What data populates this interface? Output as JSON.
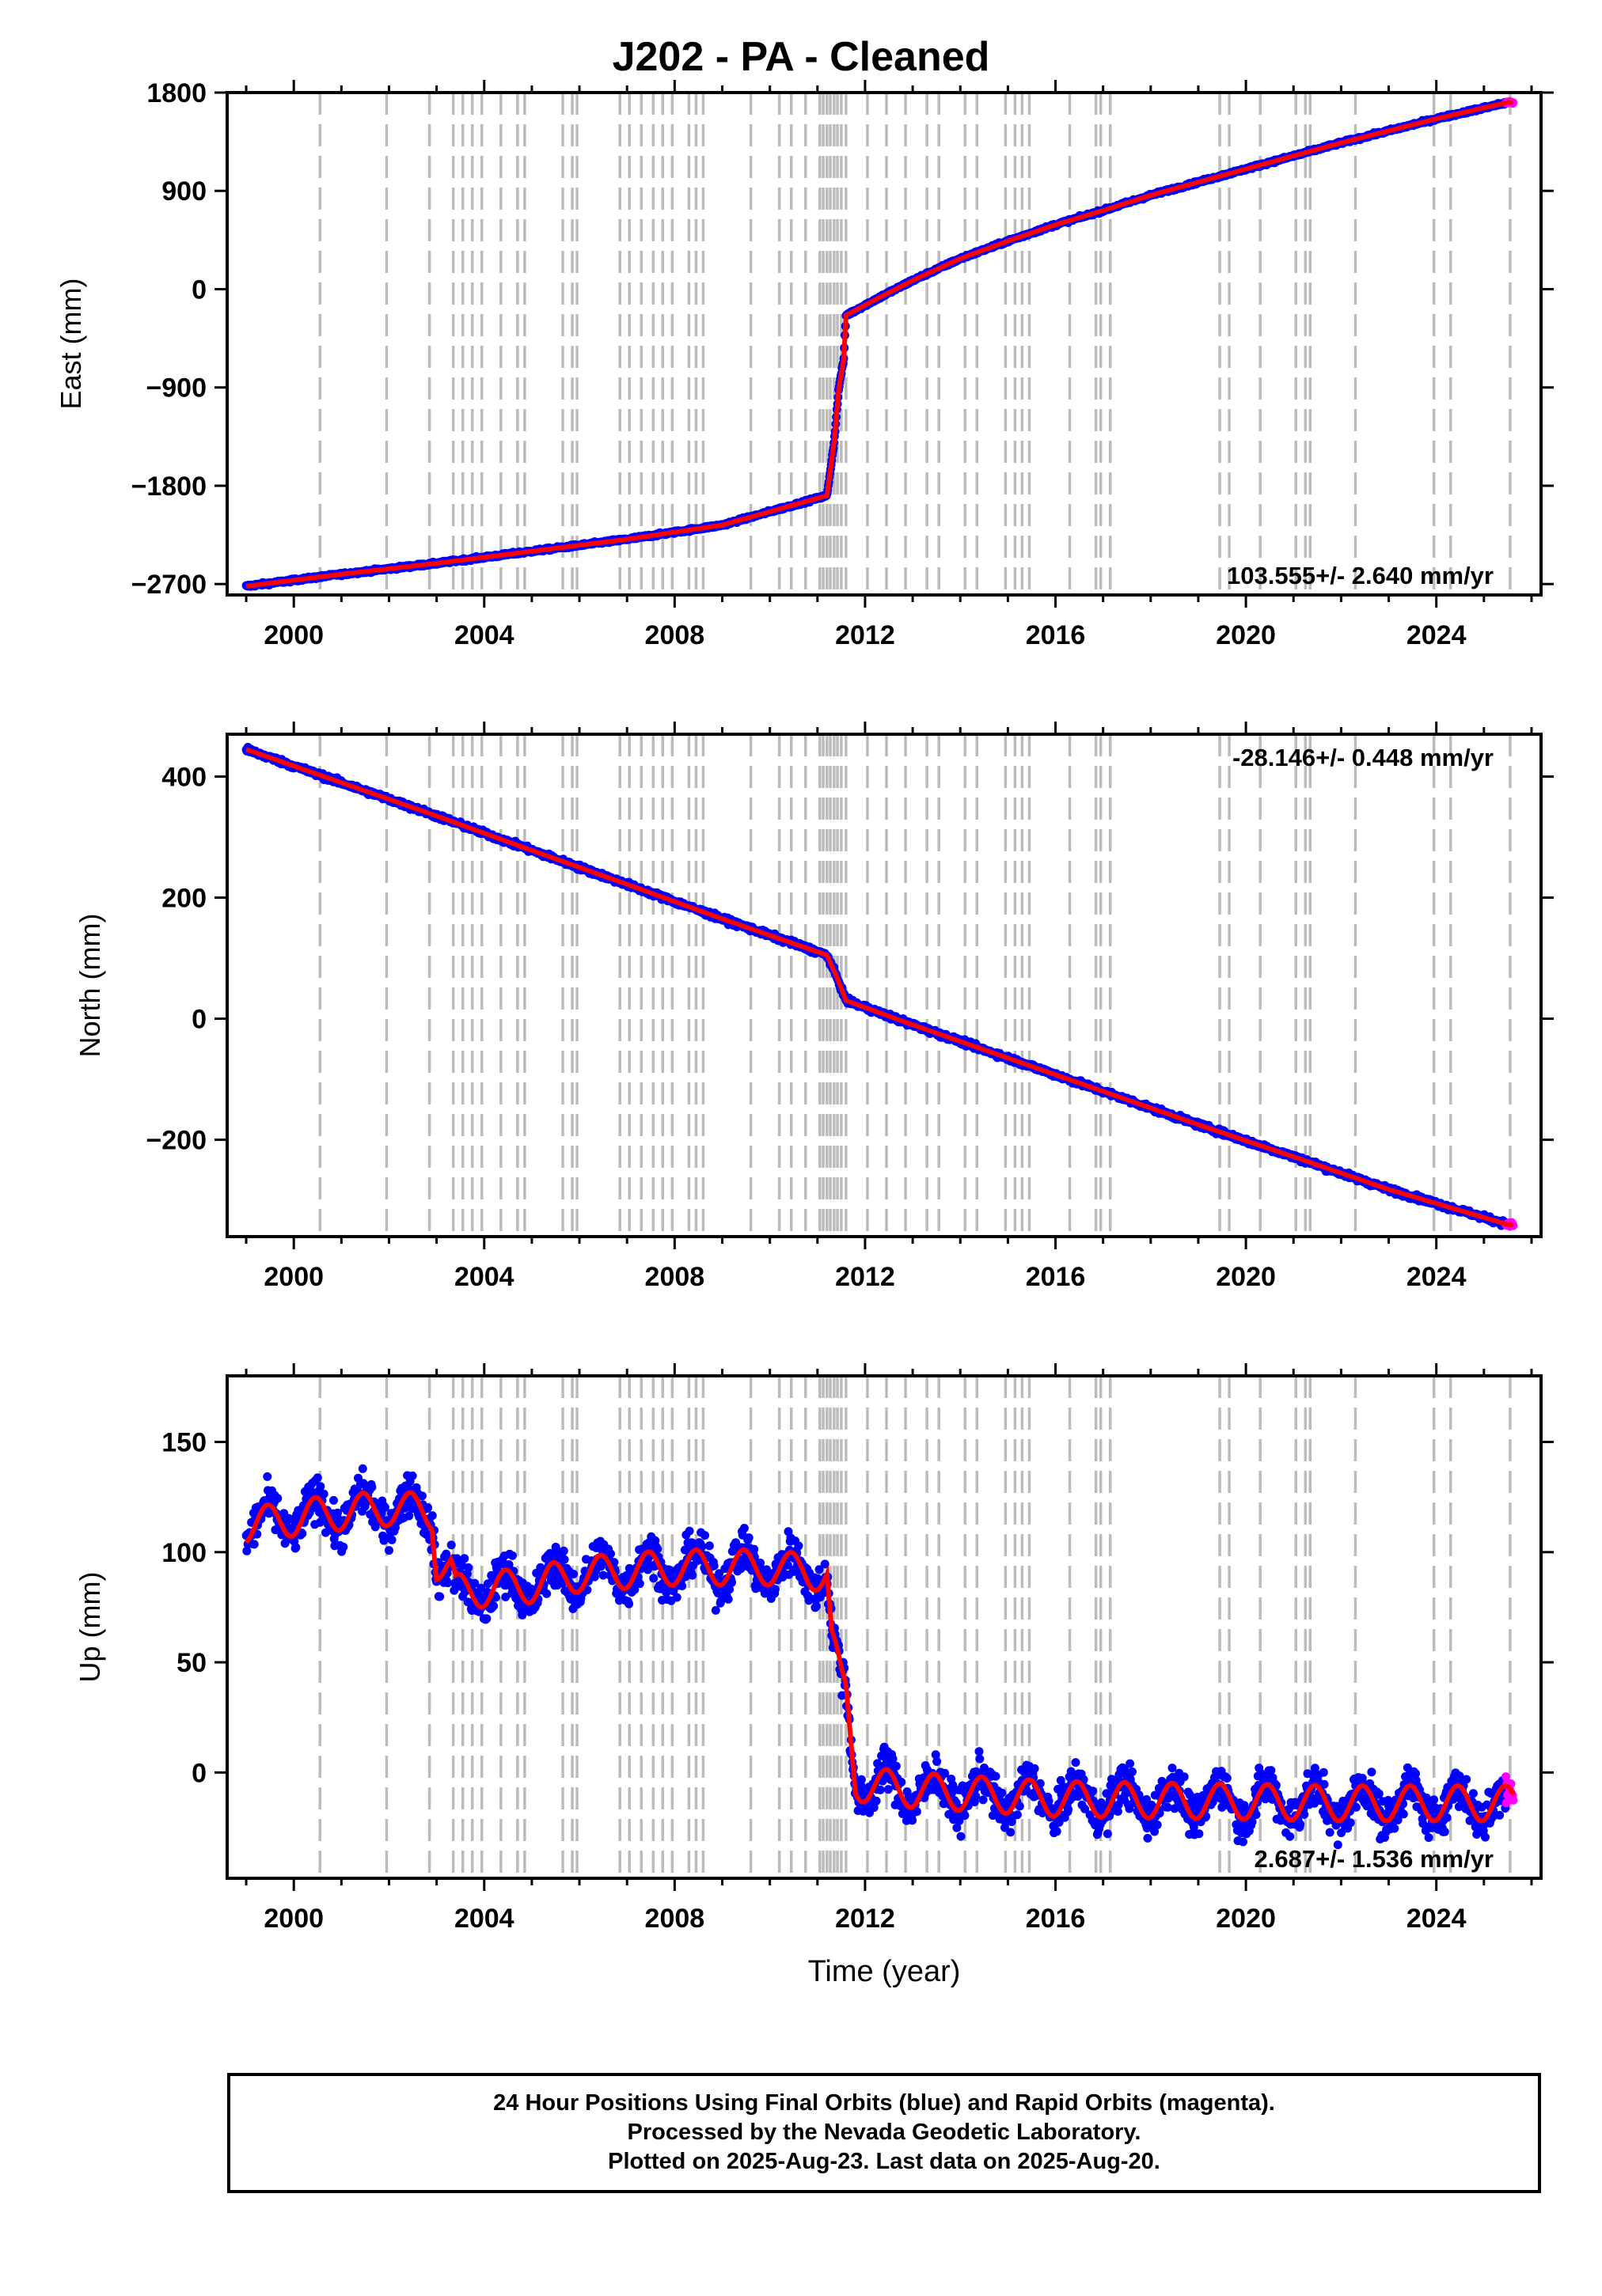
{
  "title": "J202  - PA - Cleaned",
  "footer": {
    "line1": "24 Hour Positions Using Final Orbits (blue) and Rapid Orbits (magenta).",
    "line2": "Processed by the Nevada Geodetic Laboratory.",
    "line3": "Plotted on 2025-Aug-23. Last data on 2025-Aug-20."
  },
  "colors": {
    "final_orbits": "#0000ff",
    "rapid_orbits": "#ff00ff",
    "model": "#ff0000",
    "event_lines": "#bbbbbb",
    "axis": "#000000"
  },
  "chart_data": [
    {
      "type": "scatter",
      "name": "east",
      "ylabel": "East (mm)",
      "xlabel": "",
      "xlim": [
        1998.6,
        2026.2
      ],
      "ylim": [
        -2800,
        1800
      ],
      "xticks": [
        2000,
        2004,
        2008,
        2012,
        2016,
        2020,
        2024
      ],
      "yticks": [
        1800,
        900,
        0,
        -900,
        -1800,
        -2700
      ],
      "ytick_labels": [
        "1800",
        "900",
        "0",
        "−900",
        "−1800",
        "−2700"
      ],
      "rate_label": "103.555+/- 2.640 mm/yr",
      "rate_position": "bottom-right",
      "grid": false,
      "trend_points": [
        [
          1999.0,
          -2720
        ],
        [
          2001.0,
          -2610
        ],
        [
          2003.0,
          -2510
        ],
        [
          2005.0,
          -2400
        ],
        [
          2007.0,
          -2290
        ],
        [
          2009.0,
          -2160
        ],
        [
          2011.2,
          -1890
        ],
        [
          2011.35,
          -1400
        ],
        [
          2011.45,
          -900
        ],
        [
          2011.55,
          -650
        ],
        [
          2011.6,
          -240
        ],
        [
          2012.2,
          -100
        ],
        [
          2013.0,
          80
        ],
        [
          2014.0,
          280
        ],
        [
          2015.0,
          440
        ],
        [
          2016.0,
          590
        ],
        [
          2017.0,
          720
        ],
        [
          2018.0,
          860
        ],
        [
          2019.0,
          980
        ],
        [
          2020.0,
          1100
        ],
        [
          2021.0,
          1220
        ],
        [
          2022.0,
          1340
        ],
        [
          2023.0,
          1450
        ],
        [
          2024.0,
          1560
        ],
        [
          2025.5,
          1710
        ]
      ],
      "noise_amplitude": 12,
      "seasonal_amplitude": 0
    },
    {
      "type": "scatter",
      "name": "north",
      "ylabel": "North (mm)",
      "xlabel": "",
      "xlim": [
        1998.6,
        2026.2
      ],
      "ylim": [
        -360,
        470
      ],
      "xticks": [
        2000,
        2004,
        2008,
        2012,
        2016,
        2020,
        2024
      ],
      "yticks": [
        400,
        200,
        0,
        -200
      ],
      "ytick_labels": [
        "400",
        "200",
        "0",
        "−200"
      ],
      "rate_label": "-28.146+/- 0.448 mm/yr",
      "rate_position": "top-right",
      "grid": false,
      "trend_points": [
        [
          1999.0,
          445
        ],
        [
          2001.0,
          390
        ],
        [
          2003.0,
          335
        ],
        [
          2005.0,
          278
        ],
        [
          2007.0,
          222
        ],
        [
          2009.0,
          165
        ],
        [
          2011.2,
          105
        ],
        [
          2011.4,
          70
        ],
        [
          2011.6,
          30
        ],
        [
          2013.0,
          -10
        ],
        [
          2015.0,
          -65
        ],
        [
          2017.0,
          -120
        ],
        [
          2019.0,
          -175
        ],
        [
          2021.0,
          -228
        ],
        [
          2023.0,
          -282
        ],
        [
          2025.5,
          -340
        ]
      ],
      "noise_amplitude": 4,
      "seasonal_amplitude": 0
    },
    {
      "type": "scatter",
      "name": "up",
      "ylabel": "Up (mm)",
      "xlabel": "Time (year)",
      "xlim": [
        1998.6,
        2026.2
      ],
      "ylim": [
        -48,
        180
      ],
      "xticks": [
        2000,
        2004,
        2008,
        2012,
        2016,
        2020,
        2024
      ],
      "yticks": [
        150,
        100,
        50,
        0
      ],
      "ytick_labels": [
        "150",
        "100",
        "50",
        "0"
      ],
      "rate_label": "2.687+/- 1.536 mm/yr",
      "rate_position": "bottom-right",
      "grid": false,
      "trend_points": [
        [
          1999.0,
          112
        ],
        [
          2000.5,
          117
        ],
        [
          2002.0,
          120
        ],
        [
          2002.9,
          118
        ],
        [
          2003.0,
          95
        ],
        [
          2003.3,
          92
        ],
        [
          2003.4,
          82
        ],
        [
          2005.0,
          85
        ],
        [
          2006.0,
          90
        ],
        [
          2008.0,
          93
        ],
        [
          2010.0,
          93
        ],
        [
          2011.2,
          90
        ],
        [
          2011.3,
          60
        ],
        [
          2011.5,
          40
        ],
        [
          2011.6,
          35
        ],
        [
          2011.8,
          -5
        ],
        [
          2013.0,
          -8
        ],
        [
          2016.0,
          -12
        ],
        [
          2019.0,
          -13
        ],
        [
          2022.0,
          -14
        ],
        [
          2025.5,
          -14
        ]
      ],
      "noise_amplitude": 9,
      "seasonal_amplitude": 8
    }
  ],
  "event_lines": [
    2000.55,
    2001.95,
    2002.85,
    2003.35,
    2003.55,
    2003.75,
    2003.95,
    2004.35,
    2004.7,
    2004.85,
    2005.65,
    2005.85,
    2005.95,
    2006.85,
    2007.05,
    2007.3,
    2007.55,
    2007.75,
    2007.95,
    2008.3,
    2008.45,
    2008.6,
    2009.6,
    2010.2,
    2010.45,
    2010.75,
    2011.05,
    2011.12,
    2011.2,
    2011.27,
    2011.35,
    2011.42,
    2011.5,
    2011.6,
    2012.05,
    2012.45,
    2012.85,
    2013.3,
    2013.55,
    2014.1,
    2014.35,
    2014.95,
    2015.15,
    2015.3,
    2015.45,
    2016.3,
    2016.85,
    2016.95,
    2017.15,
    2019.45,
    2019.65,
    2020.3,
    2021.05,
    2021.25,
    2021.35,
    2022.3,
    2023.95,
    2024.3,
    2025.55
  ]
}
